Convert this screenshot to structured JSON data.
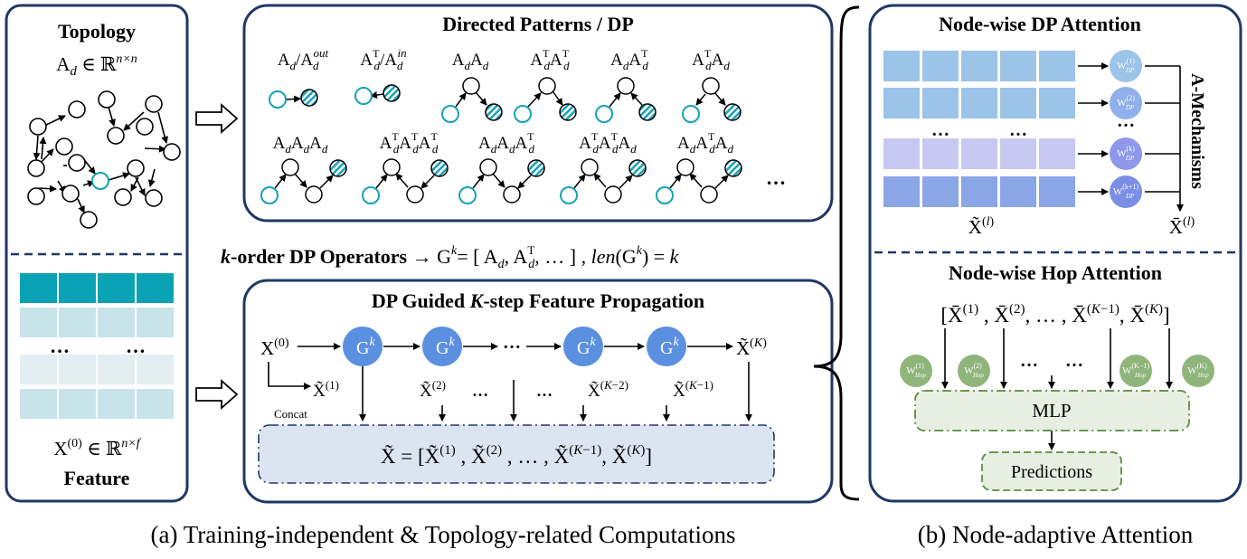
{
  "left_panel": {
    "topology_title": "Topology",
    "topology_formula": "A_d ∈ ℝ^{n×n}",
    "feature_formula": "X^(0) ∈ ℝ^{n×f}",
    "feature_title": "Feature",
    "ellipsis_a": "…",
    "ellipsis_b": "…"
  },
  "dp_panel": {
    "title": "Directed Patterns / DP",
    "row1_labels": [
      "A_d/A_d^out",
      "A_d^T/A_d^in",
      "A_d A_d",
      "A_d^T A_d^T",
      "A_d A_d^T",
      "A_d^T A_d"
    ],
    "row2_labels": [
      "A_d A_d A_d",
      "A_d^T A_d^T A_d^T",
      "A_d A_d A_d^T",
      "A_d^T A_d^T A_d",
      "A_d A_d^T A_d"
    ],
    "trailing_ellipsis": "…"
  },
  "operators_line": "k-order DP Operators → G^k = [A_d, A_d^T, …], len(G^k) = k",
  "prop_panel": {
    "title": "DP Guided K-step Feature Propagation",
    "x0": "X^(0)",
    "g_label": "G^k",
    "concat_label": "Concat",
    "tilde_labels": [
      "X̃^(1)",
      "X̃^(2)",
      "X̃^(K−2)",
      "X̃^(K−1)",
      "X̃^(K)"
    ],
    "ellipsis": "…",
    "concat_formula": "X̃ = [X̃^(1), X̃^(2), …, X̃^(K−1), X̃^(K)]"
  },
  "right_panel": {
    "dp_attention_title": "Node-wise DP Attention",
    "w_dp_labels": [
      "W_DP^(1)",
      "W_DP^(2)",
      "W_DP^(k)",
      "W_DP^(k+1)"
    ],
    "mechanisms_label": "A-Mechanisms",
    "x_tilde_l": "X̃^(l)",
    "x_bar_l": "X̄^(l)",
    "ellipsis": "…",
    "hop_attention_title": "Node-wise Hop Attention",
    "hop_inputs": "[X̄^(1), X̄^(2), …, X̄^(K−1), X̄^(K)]",
    "w_hop_labels": [
      "W_Hop^(1)",
      "W_Hop^(2)",
      "W_Hop^(K−1)",
      "W_Hop^(K)"
    ],
    "mlp_label": "MLP",
    "predictions_label": "Predictions"
  },
  "captions": {
    "a": "(a) Training-independent & Topology-related Computations",
    "b": "(b) Node-adaptive Attention"
  },
  "colors": {
    "frame": "#1f3864",
    "node_teal": "#16a2b8",
    "node_blue": "#5b8fe0",
    "node_green": "#8fb57a",
    "feature_dark": "#0aa3b5",
    "feature_light": "#c9e3ea",
    "concat_fill": "#dbe5f1",
    "mlp_fill": "#e7efe2"
  }
}
